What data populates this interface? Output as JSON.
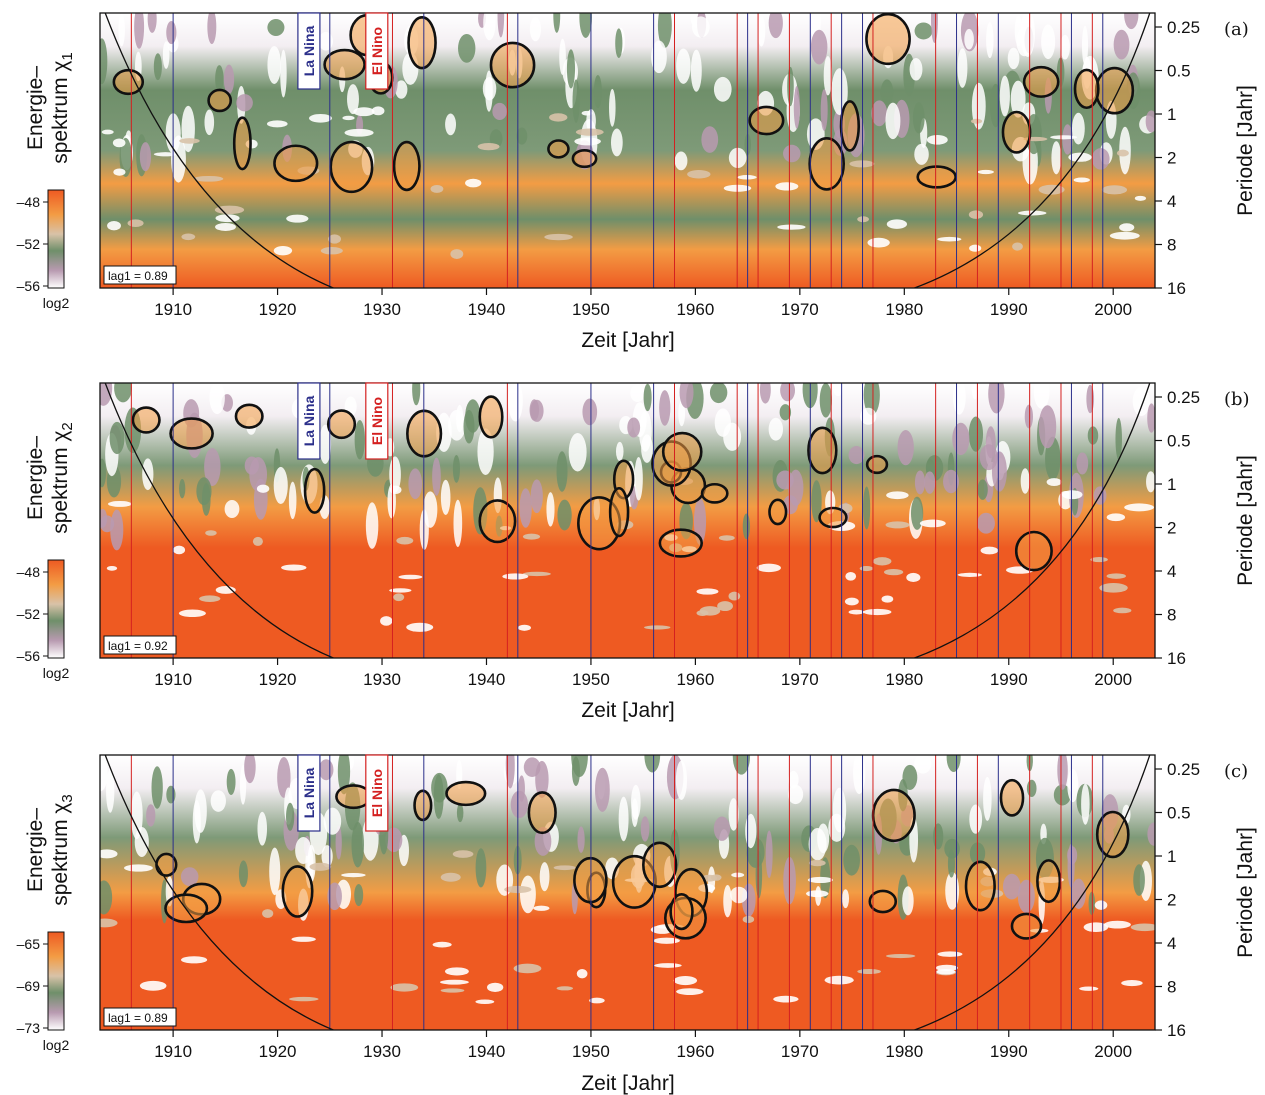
{
  "chart_data": {
    "type": "heatmap",
    "x_range": [
      1903,
      2004
    ],
    "x_ticks": [
      1910,
      1920,
      1930,
      1940,
      1950,
      1960,
      1970,
      1980,
      1990,
      2000
    ],
    "xlabel": "Zeit [Jahr]",
    "ylabel_right": "Periode [Jahr]",
    "y_scale": "log2",
    "y_range": [
      0.2,
      16
    ],
    "y_ticks": [
      "0.25",
      "0.5",
      "1",
      "2",
      "4",
      "8",
      "16"
    ],
    "y_tick_values": [
      0.25,
      0.5,
      1,
      2,
      4,
      8,
      16
    ],
    "colorbar_unit": "log2",
    "events": {
      "la_nina_label": "La Nina",
      "el_nino_label": "El Nino",
      "la_nina_color": "#2b2f8a",
      "el_nino_color": "#d42020",
      "la_nina_years": [
        1910,
        1925,
        1934,
        1943,
        1950,
        1956,
        1965,
        1971,
        1974,
        1976,
        1985,
        1989,
        1996,
        1999
      ],
      "el_nino_years": [
        1906,
        1931,
        1942,
        1958,
        1964,
        1966,
        1969,
        1973,
        1977,
        1983,
        1987,
        1992,
        1995,
        1998
      ]
    },
    "panels": [
      {
        "tag": "(a)",
        "ylabel_line1": "Energie–",
        "ylabel_line2": "spektrum χ",
        "ylabel_sub": "1",
        "lag_text": "lag1 = 0.89",
        "colorbar_ticks": [
          "–48",
          "–52",
          "–56"
        ],
        "colorbar_values": [
          -48,
          -52,
          -56
        ]
      },
      {
        "tag": "(b)",
        "ylabel_line1": "Energie–",
        "ylabel_line2": "spektrum χ",
        "ylabel_sub": "2",
        "lag_text": "lag1 = 0.92",
        "colorbar_ticks": [
          "–48",
          "–52",
          "–56"
        ],
        "colorbar_values": [
          -48,
          -52,
          -56
        ]
      },
      {
        "tag": "(c)",
        "ylabel_line1": "Energie–",
        "ylabel_line2": "spektrum χ",
        "ylabel_sub": "3",
        "lag_text": "lag1 = 0.89",
        "colorbar_ticks": [
          "–65",
          "–69",
          "–73"
        ],
        "colorbar_values": [
          -65,
          -69,
          -73
        ]
      }
    ]
  },
  "colors": {
    "high": "#ee5a22",
    "mid_high": "#f39c44",
    "mid": "#d8c2a8",
    "mid_low": "#6f8f6a",
    "low": "#b89ab0",
    "lowest": "#ffffff",
    "contour": "#111111",
    "coi": "#111111"
  }
}
